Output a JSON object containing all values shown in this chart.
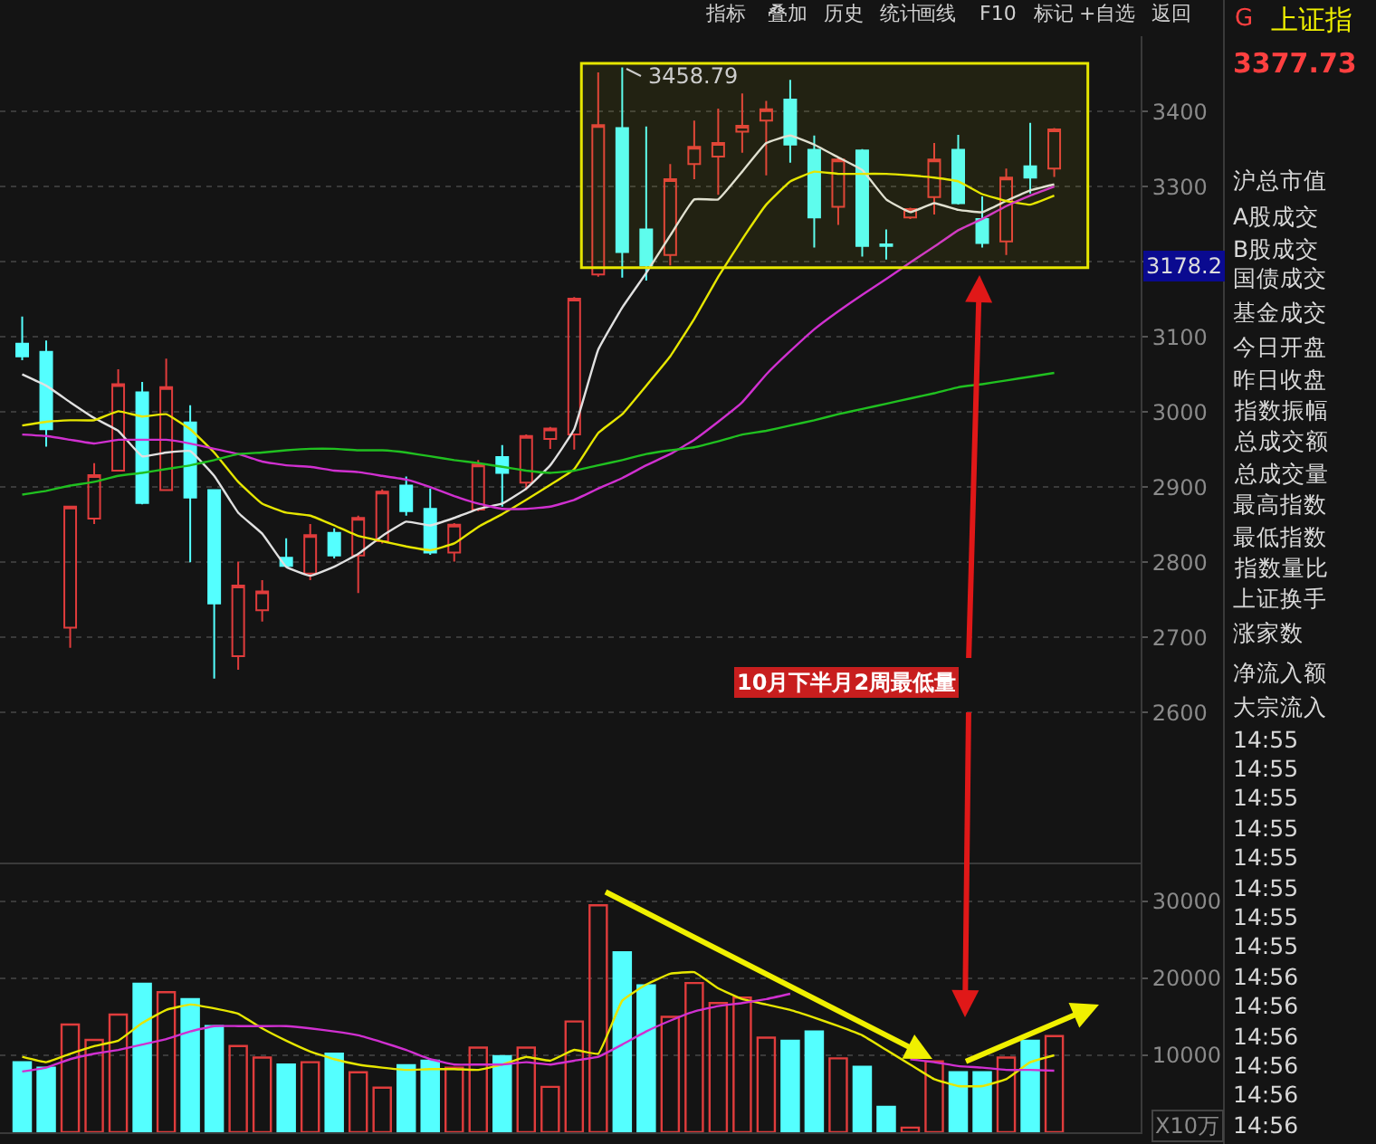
{
  "chart_data": [
    {
      "type": "candlestick",
      "categories": [
        null,
        null,
        null,
        null,
        null,
        null,
        null,
        null,
        null,
        null,
        null,
        null,
        null,
        null,
        null,
        null,
        null,
        null,
        null,
        null,
        null,
        null,
        null,
        null,
        null,
        null,
        null,
        null,
        null,
        null,
        null,
        null,
        null,
        null,
        null,
        null,
        null,
        null,
        null,
        null,
        null,
        null,
        null,
        null
      ],
      "ohlc": [
        [
          3091,
          3127,
          3069,
          3074
        ],
        [
          3080,
          3095,
          2954,
          2977
        ],
        [
          2713,
          2874,
          2686,
          2874
        ],
        [
          2858,
          2932,
          2851,
          2916
        ],
        [
          2922,
          3057,
          2922,
          3037
        ],
        [
          3026,
          3040,
          2877,
          2879
        ],
        [
          2896,
          3071,
          2896,
          3033
        ],
        [
          2986,
          3009,
          2800,
          2886
        ],
        [
          2896,
          2896,
          2645,
          2745
        ],
        [
          2675,
          2801,
          2657,
          2769
        ],
        [
          2736,
          2776,
          2721,
          2761
        ],
        [
          2806,
          2832,
          2795,
          2795
        ],
        [
          2785,
          2851,
          2776,
          2836
        ],
        [
          2839,
          2845,
          2805,
          2809
        ],
        [
          2809,
          2862,
          2759,
          2859
        ],
        [
          2828,
          2897,
          2825,
          2894
        ],
        [
          2902,
          2914,
          2862,
          2868
        ],
        [
          2871,
          2898,
          2810,
          2813
        ],
        [
          2813,
          2852,
          2801,
          2850
        ],
        [
          2870,
          2936,
          2868,
          2930
        ],
        [
          2940,
          2956,
          2874,
          2919
        ],
        [
          2906,
          2970,
          2896,
          2968
        ],
        [
          2964,
          2980,
          2951,
          2978
        ],
        [
          2970,
          3153,
          2950,
          3151
        ],
        [
          3183,
          3452,
          3180,
          3382
        ],
        [
          3378,
          3458.79,
          3179,
          3213
        ],
        [
          3243,
          3380,
          3175,
          3195
        ],
        [
          3209,
          3330,
          3195,
          3310
        ],
        [
          3330,
          3388,
          3310,
          3353
        ],
        [
          3340,
          3404,
          3289,
          3358
        ],
        [
          3373,
          3424,
          3345,
          3381
        ],
        [
          3388,
          3414,
          3315,
          3403
        ],
        [
          3416,
          3442,
          3332,
          3356
        ],
        [
          3349,
          3368,
          3219,
          3259
        ],
        [
          3273,
          3338,
          3249,
          3336
        ],
        [
          3348,
          3350,
          3207,
          3221
        ],
        [
          3223,
          3243,
          3203,
          3221
        ],
        [
          3259,
          3272,
          3257,
          3270
        ],
        [
          3286,
          3358,
          3263,
          3336
        ],
        [
          3349,
          3369,
          3276,
          3278
        ],
        [
          3257,
          3287,
          3219,
          3225
        ],
        [
          3227,
          3324,
          3209,
          3312
        ],
        [
          3327,
          3385,
          3291,
          3312
        ],
        [
          3324,
          3378,
          3313,
          3376
        ]
      ],
      "colors": [
        "#54ffff",
        "#54ffff",
        "#e03c3c",
        "#e03c3c",
        "#e03c3c",
        "#54ffff",
        "#e03c3c",
        "#54ffff",
        "#54ffff",
        "#e03c3c",
        "#e03c3c",
        "#54ffff",
        "#e03c3c",
        "#54ffff",
        "#e03c3c",
        "#e03c3c",
        "#54ffff",
        "#54ffff",
        "#e03c3c",
        "#e03c3c",
        "#54ffff",
        "#e03c3c",
        "#e03c3c",
        "#e03c3c",
        "#e03c3c",
        "#54ffff",
        "#54ffff",
        "#e03c3c",
        "#e03c3c",
        "#e03c3c",
        "#e03c3c",
        "#e03c3c",
        "#54ffff",
        "#54ffff",
        "#e03c3c",
        "#54ffff",
        "#54ffff",
        "#e03c3c",
        "#e03c3c",
        "#54ffff",
        "#54ffff",
        "#e03c3c",
        "#54ffff",
        "#e03c3c"
      ],
      "series": [
        {
          "type": "line",
          "color": "#e0e0e0",
          "values": [
            3050,
            3035,
            3013,
            2992,
            2975,
            2941,
            2946,
            2948,
            2915,
            2866,
            2838,
            2794,
            2782,
            2794,
            2811,
            2835,
            2854,
            2849,
            2859,
            2871,
            2878,
            2898,
            2929,
            2977,
            3083,
            3139,
            3185,
            3235,
            3283,
            3283,
            3320,
            3358,
            3368,
            3356,
            3339,
            3322,
            3283,
            3266,
            3278,
            3269,
            3266,
            3281,
            3295,
            3303
          ]
        },
        {
          "type": "line",
          "color": "#e6e600",
          "values": [
            2982,
            2987,
            2989,
            2989,
            3001,
            2994,
            2997,
            2977,
            2946,
            2907,
            2878,
            2866,
            2862,
            2849,
            2835,
            2828,
            2821,
            2816,
            2825,
            2847,
            2864,
            2883,
            2903,
            2924,
            2972,
            2997,
            3035,
            3074,
            3124,
            3180,
            3230,
            3276,
            3307,
            3320,
            3317,
            3317,
            3317,
            3315,
            3312,
            3307,
            3290,
            3281,
            3276,
            3288
          ]
        },
        {
          "type": "line",
          "color": "#d030d0",
          "values": [
            2970,
            2968,
            2963,
            2958,
            2963,
            2963,
            2963,
            2958,
            2951,
            2944,
            2934,
            2929,
            2927,
            2922,
            2920,
            2915,
            2910,
            2900,
            2888,
            2878,
            2871,
            2871,
            2874,
            2883,
            2898,
            2912,
            2929,
            2944,
            2963,
            2987,
            3013,
            3050,
            3081,
            3110,
            3134,
            3156,
            3177,
            3199,
            3220,
            3242,
            3257,
            3274,
            3288,
            3300
          ]
        },
        {
          "type": "line",
          "color": "#20c020",
          "values": [
            2890,
            2895,
            2902,
            2907,
            2915,
            2919,
            2924,
            2929,
            2936,
            2944,
            2946,
            2949,
            2951,
            2951,
            2949,
            2949,
            2946,
            2941,
            2936,
            2932,
            2927,
            2922,
            2919,
            2922,
            2929,
            2936,
            2944,
            2949,
            2953,
            2961,
            2970,
            2975,
            2982,
            2989,
            2997,
            3004,
            3011,
            3018,
            3025,
            3033,
            3037,
            3042,
            3047,
            3052
          ]
        }
      ],
      "ylim": [
        2400,
        3500
      ],
      "yticks": [
        2600,
        2700,
        2800,
        2900,
        3000,
        3100,
        {
          "value": 3200,
          "label": null
        },
        3300,
        3400
      ],
      "grid": "y",
      "tick_labels": "y",
      "bands": [
        {
          "axis": "y",
          "from": 3192,
          "to": 3464,
          "color": "#e6e600"
        }
      ],
      "annotations": [
        "3458.79",
        "3178.2",
        "10月下半月2周最低量"
      ]
    },
    {
      "type": "bar",
      "categories": [
        null,
        null,
        null,
        null,
        null,
        null,
        null,
        null,
        null,
        null,
        null,
        null,
        null,
        null,
        null,
        null,
        null,
        null,
        null,
        null,
        null,
        null,
        null,
        null,
        null,
        null,
        null,
        null,
        null,
        null,
        null,
        null,
        null,
        null,
        null,
        null,
        null,
        null,
        null,
        null,
        null,
        null,
        null,
        null
      ],
      "series": [
        {
          "type": "bar",
          "colors": [
            "#54ffff",
            "#54ffff",
            "#e03c3c",
            "#e03c3c",
            "#e03c3c",
            "#54ffff",
            "#e03c3c",
            "#54ffff",
            "#54ffff",
            "#e03c3c",
            "#e03c3c",
            "#54ffff",
            "#e03c3c",
            "#54ffff",
            "#e03c3c",
            "#e03c3c",
            "#54ffff",
            "#54ffff",
            "#e03c3c",
            "#e03c3c",
            "#54ffff",
            "#e03c3c",
            "#e03c3c",
            "#e03c3c",
            "#e03c3c",
            "#54ffff",
            "#54ffff",
            "#e03c3c",
            "#e03c3c",
            "#e03c3c",
            "#e03c3c",
            "#e03c3c",
            "#54ffff",
            "#54ffff",
            "#e03c3c",
            "#54ffff",
            "#54ffff",
            "#e03c3c",
            "#e03c3c",
            "#54ffff",
            "#54ffff",
            "#e03c3c",
            "#54ffff",
            "#e03c3c"
          ],
          "values": [
            9100,
            8400,
            14000,
            12000,
            15300,
            19300,
            18200,
            17300,
            13800,
            11200,
            9700,
            8800,
            9100,
            10200,
            7800,
            5800,
            8700,
            9300,
            8400,
            11000,
            9900,
            11000,
            5900,
            14400,
            29500,
            23400,
            19100,
            15000,
            19400,
            16800,
            17500,
            12300,
            11900,
            13100,
            9600,
            8500,
            3300,
            600,
            9200,
            7800,
            7800,
            9700,
            11900,
            12500
          ]
        },
        {
          "type": "line",
          "color": "#e6e600",
          "values": [
            9800,
            9100,
            10200,
            11200,
            11900,
            14200,
            15900,
            16600,
            16100,
            15400,
            13500,
            11900,
            10500,
            9500,
            8800,
            8400,
            8100,
            8200,
            8200,
            8100,
            8800,
            9800,
            9300,
            10700,
            10200,
            17100,
            19200,
            20600,
            20800,
            18700,
            17300,
            16600,
            15900,
            14900,
            13800,
            12600,
            10700,
            8800,
            6900,
            6000,
            6000,
            6900,
            9100,
            10000
          ]
        },
        {
          "type": "line",
          "color": "#d030d0",
          "values": [
            7900,
            8400,
            9500,
            10200,
            10700,
            11400,
            12100,
            13100,
            13800,
            13800,
            13800,
            13800,
            13500,
            13100,
            12600,
            11700,
            10700,
            9500,
            8800,
            8800,
            8800,
            9100,
            8800,
            9300,
            9800,
            11400,
            13100,
            14500,
            15700,
            16400,
            16800,
            17300,
            18000,
            null,
            null,
            null,
            null,
            9500,
            9100,
            8600,
            8400,
            8100,
            8100,
            8000
          ]
        }
      ],
      "ylim": [
        0,
        35000
      ],
      "yticks": [
        10000,
        20000,
        30000
      ],
      "grid": "y",
      "tick_labels": "y",
      "annotations": [
        "X10万"
      ]
    },
    {
      "type": "other",
      "title": "上证指",
      "subtitle": "3377.73",
      "annotations": [
        "G",
        "沪总市值",
        "A股成交",
        "B股成交",
        "国债成交",
        "基金成交",
        "今日开盘",
        "昨日收盘",
        "指数振幅",
        "总成交额",
        "总成交量",
        "最高指数",
        "最低指数",
        "指数量比",
        "上证换手",
        "涨家数",
        "净流入额",
        "大宗流入",
        "14:55",
        "14:55",
        "14:55",
        "14:55",
        "14:55",
        "14:55",
        "14:55",
        "14:55",
        "14:56",
        "14:56",
        "14:56",
        "14:56",
        "14:56",
        "14:56"
      ]
    },
    {
      "type": "other",
      "annotations": [
        "指标",
        "叠加",
        "历史",
        "统计",
        "画线",
        "F10",
        "标记",
        "+自选",
        "返回"
      ]
    }
  ]
}
